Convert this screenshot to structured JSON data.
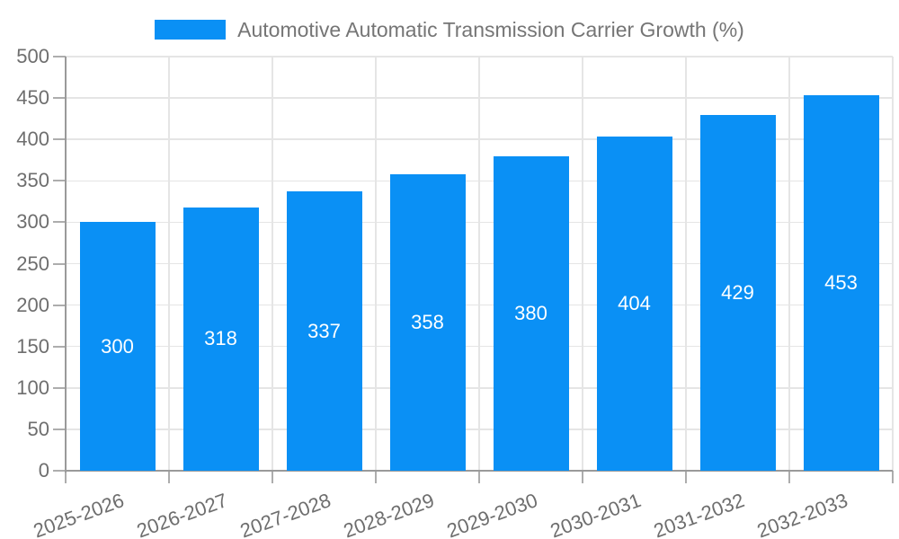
{
  "legend": {
    "series_label": "Automotive Automatic Transmission Carrier Growth (%)"
  },
  "chart_data": {
    "type": "bar",
    "title": "Automotive Automatic Transmission Carrier Growth (%)",
    "categories": [
      "2025-2026",
      "2026-2027",
      "2027-2028",
      "2028-2029",
      "2029-2030",
      "2030-2031",
      "2031-2032",
      "2032-2033"
    ],
    "series": [
      {
        "name": "Automotive Automatic Transmission Carrier Growth (%)",
        "values": [
          300,
          318,
          337,
          358,
          380,
          404,
          429,
          453
        ]
      }
    ],
    "value_labels_shown": true,
    "xlabel": "",
    "ylabel": "",
    "ylim": [
      0,
      500
    ],
    "ytick_step": 50,
    "yticks": [
      0,
      50,
      100,
      150,
      200,
      250,
      300,
      350,
      400,
      450,
      500
    ],
    "grid": true,
    "legend_position": "top",
    "x_label_rotation_deg": -20
  },
  "colors": {
    "bar": "#0A90F5",
    "grid": "#E5E5E5",
    "axis": "#9A9A9A",
    "tick_mark": "#ADADAD",
    "tick_text": "#6E6E6E",
    "legend_text": "#757575",
    "value_label_text": "#FFFFFF",
    "background": "#FFFFFF"
  }
}
